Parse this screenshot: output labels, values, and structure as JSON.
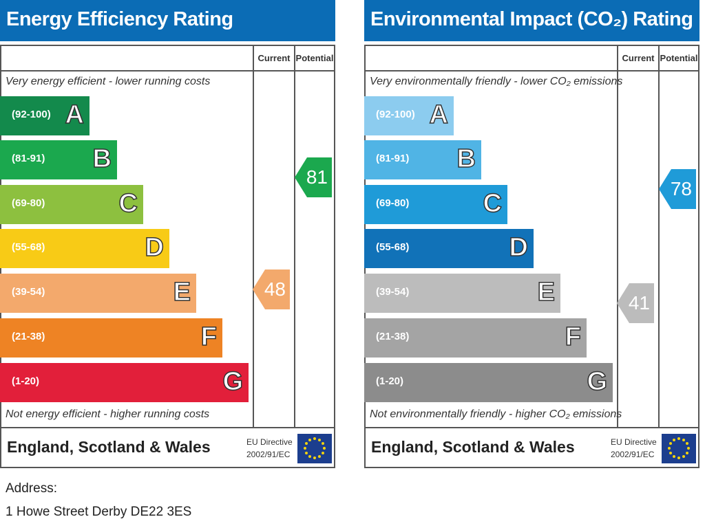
{
  "chart_data": [
    {
      "type": "bar",
      "title": "Energy Efficiency Rating",
      "columns": [
        "Current",
        "Potential"
      ],
      "top_note": "Very energy efficient - lower running costs",
      "bottom_note": "Not energy efficient - higher running costs",
      "bands": [
        {
          "range": "(92-100)",
          "letter": "A",
          "color": "#138A4C",
          "min": 92
        },
        {
          "range": "(81-91)",
          "letter": "B",
          "color": "#1BA84E",
          "min": 81
        },
        {
          "range": "(69-80)",
          "letter": "C",
          "color": "#8DC03F",
          "min": 69
        },
        {
          "range": "(55-68)",
          "letter": "D",
          "color": "#F8CB16",
          "min": 55
        },
        {
          "range": "(39-54)",
          "letter": "E",
          "color": "#F3A96C",
          "min": 39
        },
        {
          "range": "(21-38)",
          "letter": "F",
          "color": "#EE8324",
          "min": 21
        },
        {
          "range": "(1-20)",
          "letter": "G",
          "color": "#E21F3A",
          "min": 1
        }
      ],
      "current": {
        "value": "48",
        "band": 4
      },
      "potential": {
        "value": "81",
        "band": 1
      },
      "footer": "England, Scotland & Wales",
      "directive": [
        "EU Directive",
        "2002/91/EC"
      ]
    },
    {
      "type": "bar",
      "title": "Environmental Impact (CO₂) Rating",
      "columns": [
        "Current",
        "Potential"
      ],
      "top_note": "Very environmentally friendly - lower CO₂ emissions",
      "bottom_note": "Not environmentally friendly - higher CO₂ emissions",
      "bands": [
        {
          "range": "(92-100)",
          "letter": "A",
          "color": "#8CCCEF",
          "min": 92
        },
        {
          "range": "(81-91)",
          "letter": "B",
          "color": "#50B4E5",
          "min": 81
        },
        {
          "range": "(69-80)",
          "letter": "C",
          "color": "#1F9BD8",
          "min": 69
        },
        {
          "range": "(55-68)",
          "letter": "D",
          "color": "#1172B8",
          "min": 55
        },
        {
          "range": "(39-54)",
          "letter": "E",
          "color": "#BCBCBC",
          "min": 39
        },
        {
          "range": "(21-38)",
          "letter": "F",
          "color": "#A4A4A4",
          "min": 21
        },
        {
          "range": "(1-20)",
          "letter": "G",
          "color": "#8C8C8C",
          "min": 1
        }
      ],
      "current": {
        "value": "41",
        "band": 4
      },
      "potential": {
        "value": "78",
        "band": 2
      },
      "footer": "England, Scotland & Wales",
      "directive": [
        "EU Directive",
        "2002/91/EC"
      ]
    }
  ],
  "address": {
    "label": "Address:",
    "value": "1 Howe Street Derby DE22 3ES"
  }
}
